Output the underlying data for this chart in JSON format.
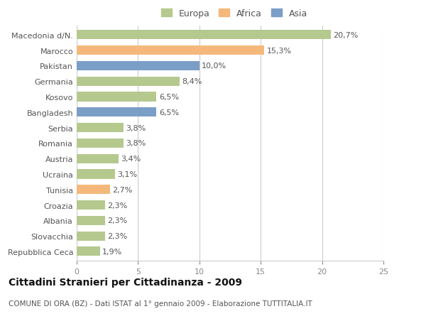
{
  "categories": [
    "Macedonia d/N.",
    "Marocco",
    "Pakistan",
    "Germania",
    "Kosovo",
    "Bangladesh",
    "Serbia",
    "Romania",
    "Austria",
    "Ucraina",
    "Tunisia",
    "Croazia",
    "Albania",
    "Slovacchia",
    "Repubblica Ceca"
  ],
  "values": [
    20.7,
    15.3,
    10.0,
    8.4,
    6.5,
    6.5,
    3.8,
    3.8,
    3.4,
    3.1,
    2.7,
    2.3,
    2.3,
    2.3,
    1.9
  ],
  "labels": [
    "20,7%",
    "15,3%",
    "10,0%",
    "8,4%",
    "6,5%",
    "6,5%",
    "3,8%",
    "3,8%",
    "3,4%",
    "3,1%",
    "2,7%",
    "2,3%",
    "2,3%",
    "2,3%",
    "1,9%"
  ],
  "colors": [
    "#b5c98e",
    "#f4b97a",
    "#7b9ec7",
    "#b5c98e",
    "#b5c98e",
    "#7b9ec7",
    "#b5c98e",
    "#b5c98e",
    "#b5c98e",
    "#b5c98e",
    "#f4b97a",
    "#b5c98e",
    "#b5c98e",
    "#b5c98e",
    "#b5c98e"
  ],
  "legend": {
    "Europa": "#b5c98e",
    "Africa": "#f4b97a",
    "Asia": "#7b9ec7"
  },
  "xlim": [
    0,
    25
  ],
  "xticks": [
    0,
    5,
    10,
    15,
    20,
    25
  ],
  "title": "Cittadini Stranieri per Cittadinanza - 2009",
  "subtitle": "COMUNE DI ORA (BZ) - Dati ISTAT al 1° gennaio 2009 - Elaborazione TUTTITALIA.IT",
  "background_color": "#ffffff",
  "grid_color": "#cccccc",
  "bar_height": 0.6,
  "label_fontsize": 8,
  "tick_fontsize": 8,
  "title_fontsize": 10,
  "subtitle_fontsize": 7.5,
  "legend_fontsize": 9
}
